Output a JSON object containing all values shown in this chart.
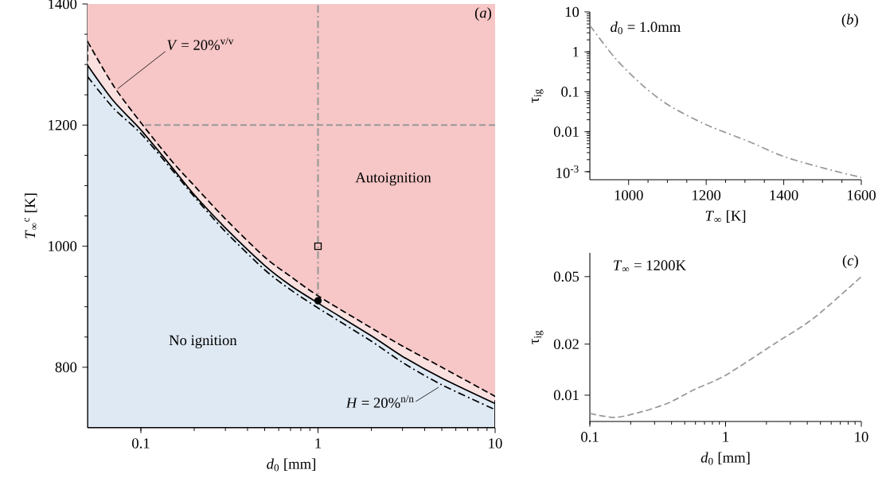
{
  "chart_data": [
    {
      "type": "line",
      "log": "x",
      "xlim": [
        0.05,
        10
      ],
      "ylim": [
        700,
        1400
      ],
      "xticks": [
        0.1,
        1,
        10
      ],
      "yticks": [
        800,
        1000,
        1200,
        1400
      ],
      "xlabel": "*d*$_{0}$ [mm]",
      "ylabel": "*T*$_{∞}$$^{c}$ [K]",
      "x": [
        0.05,
        0.07,
        0.1,
        0.15,
        0.2,
        0.3,
        0.5,
        0.7,
        1,
        2,
        3,
        5,
        10
      ],
      "bands": [
        {
          "axis": "y",
          "from": 700,
          "to": 1400,
          "color": "#f7c6c7"
        }
      ],
      "ref_lines": [
        {
          "axis": "y",
          "value": 1200,
          "color": "#999999",
          "line_style": "dashed"
        },
        {
          "axis": "x",
          "value": 1,
          "color": "#999999",
          "line_style": "dashdot"
        }
      ],
      "series": [
        {
          "type": "area",
          "color": "#fbe0e0",
          "line_style": "dashed",
          "values": [
            1338,
            1265,
            1204,
            1140,
            1100,
            1045,
            982,
            950,
            918,
            865,
            835,
            800,
            752
          ]
        },
        {
          "type": "area",
          "color": "#dfe9f3",
          "line_style": "solid",
          "values": [
            1299,
            1240,
            1192,
            1130,
            1085,
            1030,
            968,
            935,
            906,
            852,
            818,
            782,
            740
          ]
        },
        {
          "type": "line",
          "color": "#000000",
          "line_style": "dashdot",
          "values": [
            1280,
            1228,
            1186,
            1126,
            1082,
            1024,
            961,
            928,
            898,
            843,
            808,
            771,
            730
          ]
        },
        {
          "type": "scatter",
          "color": "#000000",
          "marker": "square",
          "x": [
            1
          ],
          "values": [
            1000
          ]
        },
        {
          "type": "scatter",
          "color": "#000000",
          "marker": "circle",
          "x": [
            1
          ],
          "values": [
            910
          ]
        }
      ],
      "annotations": [
        {
          "text": "*V* = 20%$^{v/v}$",
          "x": 0.074,
          "y": 1260
        },
        {
          "text": "*H* = 20%$^{n/n}$",
          "x": 4.8,
          "y": 767
        },
        "Autoignition",
        "No ignition",
        "(*a*)"
      ]
    },
    {
      "type": "line",
      "log": "y",
      "xlim": [
        900,
        1600
      ],
      "ylim": [
        0.00063,
        10
      ],
      "xticks": [
        1000,
        1200,
        1400,
        1600
      ],
      "yticks": [
        {
          "value": 0.001,
          "label": "10$^{-3}$"
        },
        0.01,
        0.1,
        1,
        10
      ],
      "xlabel": "*T*$_{∞}$ [K]",
      "ylabel": "τ$_{ig}$",
      "x": [
        900,
        965,
        1035,
        1102,
        1200,
        1310,
        1400,
        1514,
        1600
      ],
      "series": [
        {
          "color": "#999999",
          "line_style": "dashdot",
          "values": [
            4.6,
            0.7,
            0.148,
            0.047,
            0.015,
            0.0057,
            0.0024,
            0.00115,
            0.00072
          ]
        }
      ],
      "annotations": [
        "*d*$_{0}$ = 1.0mm",
        "(*b*)"
      ]
    },
    {
      "type": "line",
      "log": "xy",
      "xlim": [
        0.1,
        10
      ],
      "ylim": [
        0.007,
        0.069
      ],
      "xticks": [
        0.1,
        1,
        10
      ],
      "yticks": [
        0.01,
        0.02,
        0.05
      ],
      "xlabel": "*d*$_{0}$ [mm]",
      "ylabel": "τ$_{ig}$",
      "x": [
        0.1,
        0.154,
        0.243,
        0.379,
        0.59,
        1,
        2.27,
        4.47,
        10
      ],
      "series": [
        {
          "color": "#999999",
          "line_style": "dashed",
          "values": [
            0.0078,
            0.0074,
            0.008,
            0.009,
            0.0108,
            0.0131,
            0.02,
            0.0285,
            0.05
          ]
        }
      ],
      "annotations": [
        "*T*$_{∞}$ = 1200K",
        "(*c*)"
      ]
    }
  ]
}
